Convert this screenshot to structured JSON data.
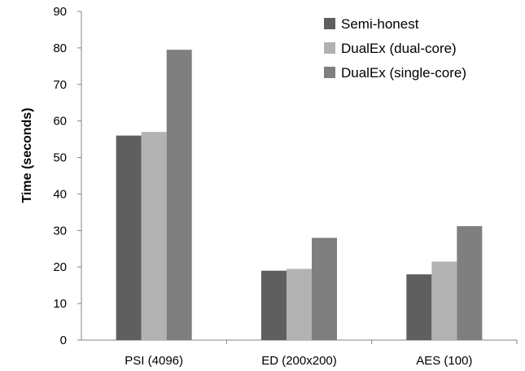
{
  "chart_data": {
    "type": "bar",
    "title": "",
    "xlabel": "",
    "ylabel": "Time (seconds)",
    "ylim": [
      0,
      90
    ],
    "yticks": [
      0,
      10,
      20,
      30,
      40,
      50,
      60,
      70,
      80,
      90
    ],
    "categories": [
      "PSI (4096)",
      "ED (200x200)",
      "AES (100)"
    ],
    "series": [
      {
        "name": "Semi-honest",
        "color": "#5f5f5f",
        "values": [
          56,
          19,
          18
        ]
      },
      {
        "name": "DualEx (dual-core)",
        "color": "#b2b2b2",
        "values": [
          57,
          19.5,
          21.5
        ]
      },
      {
        "name": "DualEx (single-core)",
        "color": "#7f7f7f",
        "values": [
          79.5,
          28,
          31.2
        ]
      }
    ],
    "grid": false,
    "legend_position": "top-right"
  }
}
